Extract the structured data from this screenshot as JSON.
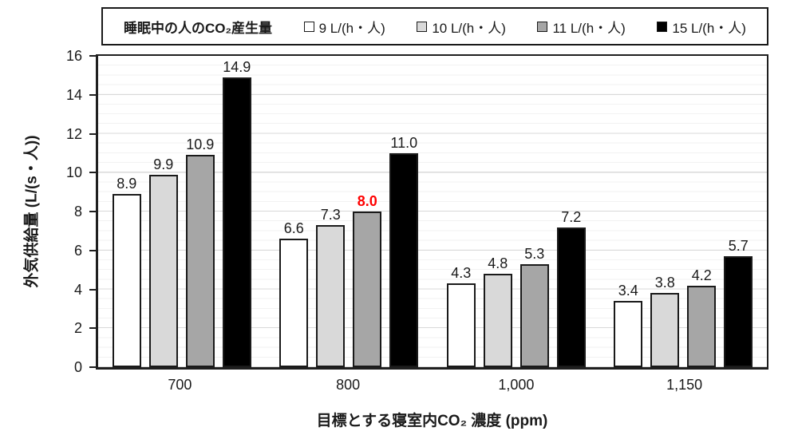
{
  "legend": {
    "title": "睡眠中の人のCO₂産生量",
    "items": [
      {
        "label": "9 L/(h・人)",
        "color": "#ffffff"
      },
      {
        "label": "10 L/(h・人)",
        "color": "#d9d9d9"
      },
      {
        "label": "11 L/(h・人)",
        "color": "#a6a6a6"
      },
      {
        "label": "15 L/(h・人)",
        "color": "#000000"
      }
    ]
  },
  "chart_data": {
    "type": "bar",
    "categories": [
      "700",
      "800",
      "1,000",
      "1,150"
    ],
    "series": [
      {
        "name": "9 L/(h・人)",
        "color": "#ffffff",
        "values": [
          8.9,
          6.6,
          4.3,
          3.4
        ]
      },
      {
        "name": "10 L/(h・人)",
        "color": "#d9d9d9",
        "values": [
          9.9,
          7.3,
          4.8,
          3.8
        ]
      },
      {
        "name": "11 L/(h・人)",
        "color": "#a6a6a6",
        "values": [
          10.9,
          8.0,
          5.3,
          4.2
        ]
      },
      {
        "name": "15 L/(h・人)",
        "color": "#000000",
        "values": [
          14.9,
          11.0,
          7.2,
          5.7
        ]
      }
    ],
    "title": "",
    "xlabel": "目標とする寝室内CO₂ 濃度 (ppm)",
    "ylabel": "外気供給量 (L/(s・人))",
    "ylim": [
      0,
      16
    ],
    "ytick_step": 2,
    "yticks": [
      "0",
      "2",
      "4",
      "6",
      "8",
      "10",
      "12",
      "14",
      "16"
    ],
    "grid": "horizontal, major every 2, minor every 0.5",
    "legend_position": "top boxed",
    "data_label_decimals": 1,
    "highlight_label": {
      "series_index": 2,
      "category_index": 1,
      "value": "8.0",
      "color": "#ff0000"
    },
    "colors": {
      "bar_border": "#1a1a1a",
      "axis_line": "#1f1f1f",
      "major_gridline": "#d9d9d9",
      "minor_gridline": "#f2f2f2",
      "highlight_text": "#ff0000",
      "default_text": "#1a1a1a"
    }
  }
}
